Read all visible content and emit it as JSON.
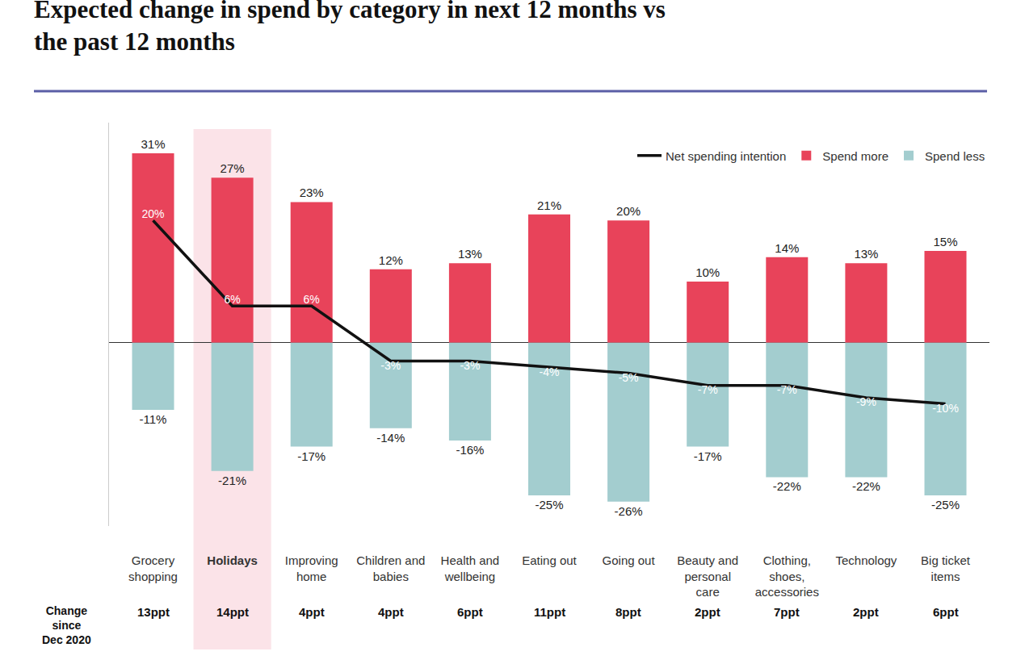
{
  "chart_data": {
    "type": "bar",
    "title": "Expected change in spend by category in next 12 months vs the past 12 months",
    "categories": [
      "Grocery shopping",
      "Holidays",
      "Improving home",
      "Children and babies",
      "Health and wellbeing",
      "Eating out",
      "Going out",
      "Beauty and personal care",
      "Clothing, shoes, accessories",
      "Technology",
      "Big ticket items"
    ],
    "series": [
      {
        "name": "Spend more",
        "color": "#e8435a",
        "values": [
          31,
          27,
          23,
          12,
          13,
          21,
          20,
          10,
          14,
          13,
          15
        ],
        "value_labels": [
          "31%",
          "27%",
          "23%",
          "12%",
          "13%",
          "21%",
          "20%",
          "10%",
          "14%",
          "13%",
          "15%"
        ]
      },
      {
        "name": "Spend less",
        "color": "#a3cdcf",
        "values": [
          -11,
          -21,
          -17,
          -14,
          -16,
          -25,
          -26,
          -17,
          -22,
          -22,
          -25
        ],
        "value_labels": [
          "-11%",
          "-21%",
          "-17%",
          "-14%",
          "-16%",
          "-25%",
          "-26%",
          "-17%",
          "-22%",
          "-22%",
          "-25%"
        ]
      },
      {
        "name": "Net spending intention",
        "type": "line",
        "color": "#111111",
        "values": [
          20,
          6,
          6,
          -3,
          -3,
          -4,
          -5,
          -7,
          -7,
          -9,
          -10
        ],
        "value_labels": [
          "20%",
          "6%",
          "6%",
          "-3%",
          "-3%",
          "-4%",
          "-5%",
          "-7%",
          "-7%",
          "-9%",
          "-10%"
        ]
      }
    ],
    "ylim": [
      -30,
      36
    ],
    "yticks": [
      0
    ],
    "grid": false,
    "stacked": true,
    "data_labels": true,
    "tick_labels": "x",
    "legend": "top right",
    "highlight": "Holidays",
    "change_since": {
      "label": "Change since Dec 2020",
      "values": [
        13,
        14,
        4,
        4,
        6,
        11,
        8,
        2,
        7,
        2,
        6
      ],
      "value_labels": [
        "13ppt",
        "14ppt",
        "4ppt",
        "4ppt",
        "6ppt",
        "11ppt",
        "8ppt",
        "2ppt",
        "7ppt",
        "2ppt",
        "6ppt"
      ]
    }
  }
}
